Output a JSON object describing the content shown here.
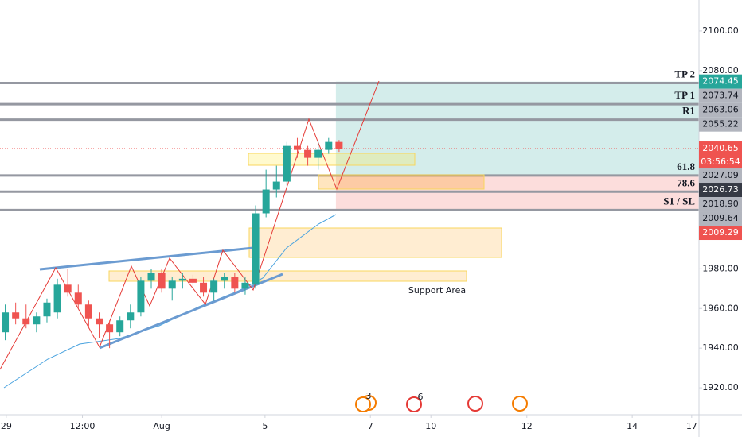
{
  "chart_data": {
    "type": "candlestick",
    "up_color": "#26a69a",
    "down_color": "#ef5350",
    "x": [
      0.5,
      1.5,
      2.5,
      3.5,
      4.5,
      5.5,
      6.5,
      7.5,
      8.5,
      9.5,
      10.5,
      11.5,
      12.5,
      13.5,
      14.5,
      15.5,
      16.5,
      17.5,
      18.5,
      19.5,
      20.5,
      21.5,
      22.5,
      23.5,
      24.5,
      25.5,
      26.5,
      27.5,
      28.5,
      29.5,
      30.5,
      31.5,
      32.5
    ],
    "open": [
      1948,
      1958,
      1955,
      1952,
      1956,
      1958,
      1972,
      1968,
      1962,
      1955,
      1952,
      1948,
      1954,
      1958,
      1974,
      1978,
      1970,
      1974,
      1975,
      1973,
      1968,
      1974,
      1976,
      1970,
      1972,
      2008,
      2020,
      2024,
      2042,
      2040,
      2036,
      2040,
      2044
    ],
    "high": [
      1962,
      1963,
      1962,
      1958,
      1965,
      1975,
      1980,
      1972,
      1964,
      1958,
      1954,
      1956,
      1962,
      1976,
      1980,
      1980,
      1976,
      1978,
      1977,
      1976,
      1975,
      1978,
      1978,
      1976,
      2012,
      2030,
      2032,
      2044,
      2046,
      2042,
      2044,
      2046,
      2045
    ],
    "low": [
      1944,
      1952,
      1950,
      1948,
      1953,
      1955,
      1966,
      1960,
      1950,
      1945,
      1940,
      1946,
      1950,
      1956,
      1970,
      1968,
      1964,
      1970,
      1971,
      1966,
      1964,
      1970,
      1968,
      1967,
      1970,
      2006,
      2016,
      2022,
      2036,
      2032,
      2030,
      2038,
      2039
    ],
    "close": [
      1958,
      1955,
      1952,
      1956,
      1963,
      1972,
      1968,
      1962,
      1955,
      1952,
      1948,
      1954,
      1958,
      1974,
      1978,
      1970,
      1974,
      1975,
      1973,
      1968,
      1974,
      1976,
      1970,
      1973,
      2008,
      2020,
      2024,
      2042,
      2040,
      2036,
      2040,
      2044,
      2040.65
    ],
    "xlim": [
      0,
      67
    ],
    "ylim": [
      1906.4,
      2115.6
    ],
    "xticks": [
      {
        "value": 0.6,
        "label": "29"
      },
      {
        "value": 7.9,
        "label": "12:00"
      },
      {
        "value": 15.5,
        "label": "Aug"
      },
      {
        "value": 25.4,
        "label": "5"
      },
      {
        "value": 35.5,
        "label": "7"
      },
      {
        "value": 41.3,
        "label": "10"
      },
      {
        "value": 50.5,
        "label": "12"
      },
      {
        "value": 60.6,
        "label": "14"
      },
      {
        "value": 66.3,
        "label": "17"
      }
    ],
    "yticks": [
      {
        "value": 1920,
        "label": "1920.00"
      },
      {
        "value": 1940,
        "label": "1940.00"
      },
      {
        "value": 1960,
        "label": "1960.00"
      },
      {
        "value": 1980,
        "label": "1980.00"
      },
      {
        "value": 2080,
        "label": "2080.00"
      },
      {
        "value": 2100,
        "label": "2100.00"
      }
    ],
    "levels": [
      {
        "name": "TP 2",
        "price": 2073.74
      },
      {
        "name": "TP 1",
        "price": 2063.06
      },
      {
        "name": "R1",
        "price": 2055.22
      },
      {
        "name": "61.8",
        "price": 2027.09
      },
      {
        "name": "78.6",
        "price": {
          "value": 2018.9,
          "label": "2018.90"
        }
      },
      {
        "name": "S1 / SL",
        "price": 2009.64
      }
    ],
    "position": {
      "target": 2074.45,
      "entry": 2026.73,
      "stop": 2009.29
    },
    "countdown": "03:56:54",
    "annotation": "Support Area",
    "events": [
      "3",
      "6"
    ]
  }
}
